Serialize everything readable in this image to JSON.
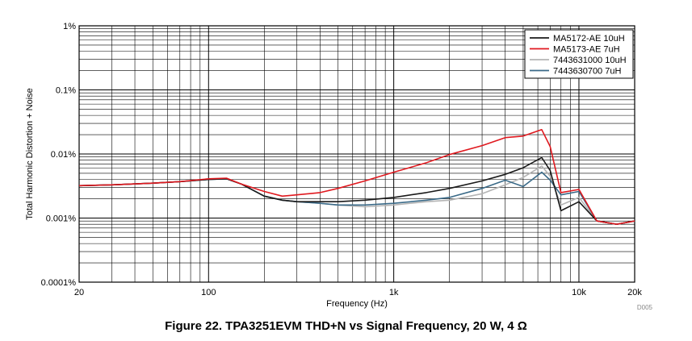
{
  "caption": "Figure 22. TPA3251EVM THD+N vs Signal Frequency, 20 W, 4 Ω",
  "doc_code": "D005",
  "chart_data": {
    "type": "line",
    "title": "",
    "xlabel": "Frequency (Hz)",
    "ylabel": "Total Harmonic Distortion + Noise",
    "x_scale": "log",
    "y_scale": "log",
    "xlim": [
      20,
      20000
    ],
    "ylim": [
      0.0001,
      1
    ],
    "grid": true,
    "legend_position": "top-right",
    "x_ticks": [
      {
        "value": 20,
        "label": "20"
      },
      {
        "value": 100,
        "label": "100"
      },
      {
        "value": 1000,
        "label": "1k"
      },
      {
        "value": 10000,
        "label": "10k"
      },
      {
        "value": 20000,
        "label": "20k"
      }
    ],
    "y_ticks": [
      {
        "value": 1,
        "label": "1%"
      },
      {
        "value": 0.1,
        "label": "0.1%"
      },
      {
        "value": 0.01,
        "label": "0.01%"
      },
      {
        "value": 0.001,
        "label": "0.001%"
      },
      {
        "value": 0.0001,
        "label": "0.0001%"
      }
    ],
    "series": [
      {
        "name": "MA5172-AE 10uH",
        "color": "#1a1a1a",
        "x": [
          20,
          30,
          50,
          70,
          100,
          125,
          150,
          200,
          250,
          300,
          400,
          500,
          700,
          1000,
          1500,
          2000,
          3000,
          4000,
          5000,
          6300,
          7000,
          8000,
          10000,
          12500,
          16000,
          20000
        ],
        "y": [
          0.0032,
          0.0033,
          0.0035,
          0.0037,
          0.004,
          0.0041,
          0.0034,
          0.0022,
          0.0019,
          0.0018,
          0.0018,
          0.0018,
          0.0019,
          0.0021,
          0.0025,
          0.0029,
          0.0038,
          0.0048,
          0.0061,
          0.0088,
          0.0055,
          0.0013,
          0.0018,
          0.0009,
          0.0008,
          0.0009
        ]
      },
      {
        "name": "MA5173-AE 7uH",
        "color": "#e0191f",
        "x": [
          20,
          30,
          50,
          70,
          100,
          125,
          150,
          200,
          250,
          300,
          400,
          500,
          700,
          1000,
          1500,
          2000,
          3000,
          4000,
          5000,
          6300,
          7000,
          8000,
          10000,
          12500,
          16000,
          20000
        ],
        "y": [
          0.0032,
          0.0033,
          0.0035,
          0.0037,
          0.0041,
          0.0042,
          0.0034,
          0.0026,
          0.0022,
          0.0023,
          0.0025,
          0.0029,
          0.0038,
          0.0052,
          0.0073,
          0.0098,
          0.0135,
          0.018,
          0.019,
          0.024,
          0.013,
          0.0025,
          0.0028,
          0.0009,
          0.0008,
          0.0009
        ]
      },
      {
        "name": "7443631000 10uH",
        "color": "#b4b4b4",
        "x": [
          20,
          30,
          50,
          70,
          100,
          125,
          150,
          200,
          250,
          300,
          400,
          500,
          700,
          1000,
          1500,
          2000,
          3000,
          4000,
          5000,
          6300,
          7000,
          8000,
          10000,
          12500,
          16000,
          20000
        ],
        "y": [
          0.0032,
          0.0033,
          0.0035,
          0.0037,
          0.004,
          0.0041,
          0.0034,
          0.0022,
          0.0019,
          0.0018,
          0.0017,
          0.0016,
          0.0015,
          0.0016,
          0.0018,
          0.0019,
          0.0024,
          0.0033,
          0.0043,
          0.0065,
          0.0045,
          0.0016,
          0.0021,
          0.0009,
          0.0008,
          0.0009
        ]
      },
      {
        "name": "7443630700 7uH",
        "color": "#3a6a88",
        "x": [
          20,
          30,
          50,
          70,
          100,
          125,
          150,
          200,
          250,
          300,
          400,
          500,
          700,
          1000,
          1500,
          2000,
          3000,
          4000,
          5000,
          6300,
          7000,
          8000,
          10000,
          12500,
          16000,
          20000
        ],
        "y": [
          0.0032,
          0.0033,
          0.0035,
          0.0037,
          0.004,
          0.0041,
          0.0034,
          0.0022,
          0.0019,
          0.0018,
          0.0017,
          0.0016,
          0.0016,
          0.0017,
          0.0019,
          0.0021,
          0.0029,
          0.0039,
          0.0031,
          0.0052,
          0.0039,
          0.0023,
          0.0026,
          0.0009,
          0.0008,
          0.0009
        ]
      }
    ]
  }
}
